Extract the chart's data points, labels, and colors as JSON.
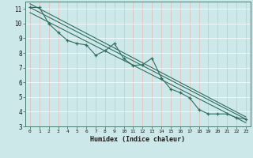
{
  "title": "",
  "xlabel": "Humidex (Indice chaleur)",
  "ylabel": "",
  "bg_color": "#cce8e8",
  "grid_color": "#ffffff",
  "line_color": "#2e6e60",
  "xlim": [
    -0.5,
    23.5
  ],
  "ylim": [
    3,
    11.5
  ],
  "yticks": [
    3,
    4,
    5,
    6,
    7,
    8,
    9,
    10,
    11
  ],
  "xticks": [
    0,
    1,
    2,
    3,
    4,
    5,
    6,
    7,
    8,
    9,
    10,
    11,
    12,
    13,
    14,
    15,
    16,
    17,
    18,
    19,
    20,
    21,
    22,
    23
  ],
  "series": [
    [
      0,
      11.1
    ],
    [
      1,
      11.1
    ],
    [
      2,
      10.0
    ],
    [
      3,
      9.4
    ],
    [
      4,
      8.85
    ],
    [
      5,
      8.65
    ],
    [
      6,
      8.55
    ],
    [
      7,
      7.85
    ],
    [
      8,
      8.15
    ],
    [
      9,
      8.65
    ],
    [
      10,
      7.6
    ],
    [
      11,
      7.15
    ],
    [
      12,
      7.2
    ],
    [
      13,
      7.65
    ],
    [
      14,
      6.3
    ],
    [
      15,
      5.55
    ],
    [
      16,
      5.3
    ],
    [
      17,
      4.95
    ],
    [
      18,
      4.15
    ],
    [
      19,
      3.85
    ],
    [
      20,
      3.85
    ],
    [
      21,
      3.85
    ],
    [
      22,
      3.6
    ],
    [
      23,
      3.5
    ]
  ],
  "line1": [
    [
      0,
      11.1
    ],
    [
      23,
      3.5
    ]
  ],
  "line2": [
    [
      0,
      10.75
    ],
    [
      23,
      3.25
    ]
  ],
  "line3": [
    [
      0,
      11.35
    ],
    [
      23,
      3.65
    ]
  ]
}
